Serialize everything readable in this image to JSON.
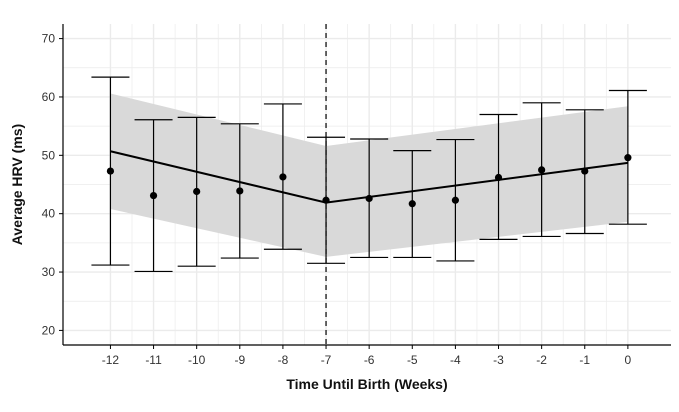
{
  "chart_data": {
    "type": "scatter",
    "title": "",
    "xlabel": "Time Until Birth (Weeks)",
    "ylabel": "Average HRV (ms)",
    "xlim": [
      -13.1,
      1.0
    ],
    "ylim": [
      17.5,
      72.5
    ],
    "x_ticks": [
      -12,
      -11,
      -10,
      -9,
      -8,
      -7,
      -6,
      -5,
      -4,
      -3,
      -2,
      -1,
      0
    ],
    "x_tick_labels": [
      "-12",
      "-11",
      "-10",
      "-9",
      "-8",
      "-7",
      "-6",
      "-5",
      "-4",
      "-3",
      "-2",
      "-1",
      "0"
    ],
    "y_ticks": [
      20,
      30,
      40,
      50,
      60,
      70
    ],
    "y_tick_labels": [
      "20",
      "30",
      "40",
      "50",
      "60",
      "70"
    ],
    "grid": true,
    "points": [
      {
        "x": -12,
        "y": 47.3,
        "low": 31.2,
        "high": 63.4
      },
      {
        "x": -11,
        "y": 43.1,
        "low": 30.1,
        "high": 56.1
      },
      {
        "x": -10,
        "y": 43.8,
        "low": 31.0,
        "high": 56.5
      },
      {
        "x": -9,
        "y": 43.9,
        "low": 32.4,
        "high": 55.4
      },
      {
        "x": -8,
        "y": 46.3,
        "low": 33.9,
        "high": 58.8
      },
      {
        "x": -7,
        "y": 42.3,
        "low": 31.5,
        "high": 53.1
      },
      {
        "x": -6,
        "y": 42.6,
        "low": 32.5,
        "high": 52.8
      },
      {
        "x": -5,
        "y": 41.7,
        "low": 32.5,
        "high": 50.8
      },
      {
        "x": -4,
        "y": 42.3,
        "low": 31.9,
        "high": 52.7
      },
      {
        "x": -3,
        "y": 46.2,
        "low": 35.6,
        "high": 57.0
      },
      {
        "x": -2,
        "y": 47.5,
        "low": 36.1,
        "high": 59.0
      },
      {
        "x": -1,
        "y": 47.3,
        "low": 36.6,
        "high": 57.8
      },
      {
        "x": 0,
        "y": 49.6,
        "low": 38.2,
        "high": 61.1
      }
    ],
    "fit_line": [
      {
        "x": -12,
        "y": 50.7
      },
      {
        "x": -7,
        "y": 41.9
      },
      {
        "x": 0,
        "y": 48.7
      }
    ],
    "confidence_band": {
      "x": [
        -12,
        -7,
        0
      ],
      "upper": [
        60.6,
        51.6,
        58.4
      ],
      "lower": [
        40.8,
        32.6,
        38.6
      ]
    },
    "breakpoint_x": -7,
    "colors": {
      "band": "#d9d9d9",
      "line": "#000000",
      "point": "#000000",
      "errorbar": "#000000",
      "grid": "#ebebeb",
      "axis": "#000000"
    }
  }
}
